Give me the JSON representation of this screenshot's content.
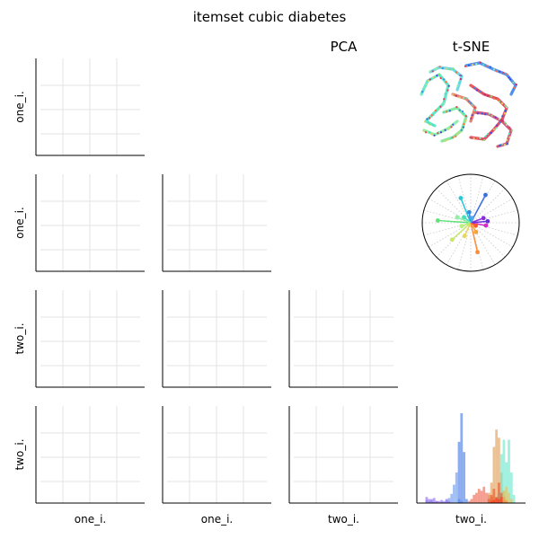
{
  "chart_data": {
    "type": "pairplot",
    "title": "itemset cubic diabetes",
    "column_titles": [
      "",
      "",
      "PCA",
      "t-SNE"
    ],
    "row_labels": [
      "one_i.",
      "one_i.",
      "two_i.",
      "two_i."
    ],
    "col_labels": [
      "one_i.",
      "one_i.",
      "two_i.",
      "two_i."
    ],
    "grid": true,
    "panels": [
      {
        "row": 0,
        "col": 0,
        "type": "empty_grid"
      },
      {
        "row": 0,
        "col": 3,
        "type": "tsne_embedding",
        "description_series": [
          "strands"
        ]
      },
      {
        "row": 1,
        "col": 0,
        "type": "empty_grid"
      },
      {
        "row": 1,
        "col": 1,
        "type": "empty_grid"
      },
      {
        "row": 1,
        "col": 3,
        "type": "polar_lollipop",
        "points": [
          {
            "angle_deg": 62,
            "r": 0.65,
            "color": "#3b6fe0"
          },
          {
            "angle_deg": 112,
            "r": 0.55,
            "color": "#27c6d4"
          },
          {
            "angle_deg": 20,
            "r": 0.28,
            "color": "#8a2be2"
          },
          {
            "angle_deg": 350,
            "r": 0.32,
            "color": "#d42ac8"
          },
          {
            "angle_deg": 5,
            "r": 0.35,
            "color": "#6a2fd6"
          },
          {
            "angle_deg": 98,
            "r": 0.22,
            "color": "#2f8ce0"
          },
          {
            "angle_deg": 140,
            "r": 0.18,
            "color": "#47e0b8"
          },
          {
            "angle_deg": 176,
            "r": 0.68,
            "color": "#5fe37a"
          },
          {
            "angle_deg": 200,
            "r": 0.2,
            "color": "#b8f07a"
          },
          {
            "angle_deg": 222,
            "r": 0.52,
            "color": "#c9e86a"
          },
          {
            "angle_deg": 245,
            "r": 0.3,
            "color": "#e8d65a"
          },
          {
            "angle_deg": 283,
            "r": 0.62,
            "color": "#ff8c3a"
          },
          {
            "angle_deg": 300,
            "r": 0.22,
            "color": "#f4a23a"
          },
          {
            "angle_deg": 330,
            "r": 0.12,
            "color": "#ff5a2a"
          },
          {
            "angle_deg": 158,
            "r": 0.3,
            "color": "#8ef0a0"
          },
          {
            "angle_deg": 75,
            "r": 0.1,
            "color": "#4aa8f0"
          }
        ]
      },
      {
        "row": 2,
        "col": 0,
        "type": "empty_grid"
      },
      {
        "row": 2,
        "col": 1,
        "type": "empty_grid"
      },
      {
        "row": 2,
        "col": 2,
        "type": "empty_grid"
      },
      {
        "row": 3,
        "col": 0,
        "type": "empty_grid"
      },
      {
        "row": 3,
        "col": 1,
        "type": "empty_grid"
      },
      {
        "row": 3,
        "col": 2,
        "type": "empty_grid"
      },
      {
        "row": 3,
        "col": 3,
        "type": "histogram",
        "bins": 40,
        "series": [
          {
            "color": "#6f9cf0",
            "counts": [
              0,
              0,
              3,
              2,
              4,
              1,
              2,
              0,
              1,
              2,
              3,
              5,
              9,
              18,
              30,
              4,
              2,
              0,
              0,
              0,
              0,
              0,
              0,
              0,
              0,
              0,
              0,
              0,
              0,
              0,
              0,
              0,
              0,
              0,
              0,
              0,
              0,
              0,
              0,
              0
            ]
          },
          {
            "color": "#4f7fe8",
            "counts": [
              0,
              0,
              0,
              0,
              0,
              0,
              0,
              0,
              0,
              0,
              0,
              0,
              0,
              0,
              0,
              60,
              88,
              50,
              4,
              0,
              0,
              0,
              0,
              0,
              0,
              0,
              0,
              0,
              0,
              0,
              0,
              0,
              0,
              0,
              0,
              0,
              0,
              0,
              0,
              0
            ]
          },
          {
            "color": "#9b6ff0",
            "counts": [
              0,
              0,
              6,
              4,
              3,
              5,
              2,
              2,
              3,
              1,
              4,
              2,
              0,
              0,
              0,
              0,
              0,
              0,
              0,
              0,
              0,
              0,
              0,
              0,
              0,
              0,
              0,
              0,
              0,
              0,
              0,
              0,
              0,
              0,
              0,
              0,
              0,
              0,
              0,
              0
            ]
          },
          {
            "color": "#f06a55",
            "counts": [
              0,
              0,
              0,
              0,
              0,
              0,
              0,
              0,
              0,
              0,
              0,
              0,
              0,
              0,
              0,
              0,
              0,
              0,
              0,
              2,
              4,
              8,
              10,
              14,
              12,
              16,
              10,
              8,
              6,
              3,
              0,
              0,
              0,
              0,
              0,
              0,
              0,
              0,
              0,
              0
            ]
          },
          {
            "color": "#e0a25a",
            "counts": [
              0,
              0,
              0,
              0,
              0,
              0,
              0,
              0,
              0,
              0,
              0,
              0,
              0,
              0,
              0,
              0,
              0,
              0,
              0,
              0,
              0,
              0,
              0,
              0,
              0,
              0,
              0,
              10,
              20,
              55,
              72,
              64,
              30,
              12,
              4,
              0,
              0,
              0,
              0,
              0
            ]
          },
          {
            "color": "#6fe8d0",
            "counts": [
              0,
              0,
              0,
              0,
              0,
              0,
              0,
              0,
              0,
              0,
              0,
              0,
              0,
              0,
              0,
              0,
              0,
              0,
              0,
              0,
              0,
              0,
              0,
              0,
              0,
              0,
              0,
              0,
              0,
              0,
              0,
              10,
              48,
              62,
              40,
              62,
              30,
              8,
              0,
              0
            ]
          },
          {
            "color": "#e85a30",
            "counts": [
              0,
              0,
              0,
              0,
              0,
              0,
              0,
              0,
              0,
              0,
              0,
              0,
              0,
              0,
              0,
              0,
              0,
              0,
              0,
              0,
              0,
              0,
              0,
              0,
              0,
              0,
              0,
              4,
              8,
              14,
              6,
              20,
              10,
              6,
              2,
              0,
              0,
              0,
              0,
              0
            ]
          },
          {
            "color": "#ff3a1a",
            "counts": [
              0,
              0,
              0,
              0,
              0,
              0,
              0,
              0,
              0,
              0,
              0,
              0,
              0,
              0,
              0,
              0,
              0,
              0,
              0,
              0,
              0,
              0,
              0,
              0,
              0,
              0,
              0,
              0,
              2,
              3,
              5,
              4,
              6,
              3,
              2,
              0,
              0,
              0,
              0,
              0
            ]
          },
          {
            "color": "#f0c05a",
            "counts": [
              0,
              0,
              0,
              0,
              0,
              0,
              0,
              0,
              0,
              0,
              0,
              0,
              0,
              0,
              0,
              0,
              0,
              0,
              0,
              0,
              0,
              0,
              0,
              0,
              0,
              0,
              0,
              0,
              0,
              0,
              0,
              0,
              0,
              12,
              16,
              10,
              4,
              0,
              0,
              0
            ]
          }
        ]
      }
    ]
  }
}
